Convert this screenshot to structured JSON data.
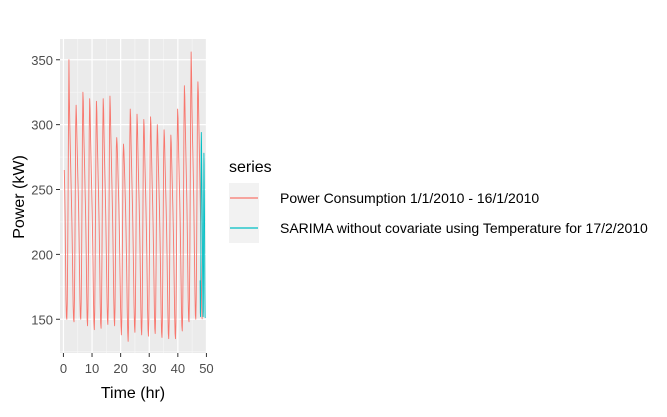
{
  "chart_data": {
    "type": "line",
    "xlabel": "Time (hr)",
    "ylabel": "Power (kW)",
    "xlim": [
      -1.2,
      50.2
    ],
    "ylim": [
      124,
      366
    ],
    "x_ticks": [
      0,
      10,
      20,
      30,
      40,
      50
    ],
    "y_ticks": [
      150,
      200,
      250,
      300,
      350
    ],
    "grid": true,
    "legend": {
      "title": "series",
      "position": "right"
    },
    "series": [
      {
        "name": "Power Consumption 1/1/2010 - 16/1/2010",
        "color": "#F8766D",
        "x_start": 0.3,
        "x_end": 48.5,
        "values": [
          265,
          250,
          228,
          195,
          165,
          152,
          150,
          162,
          198,
          245,
          305,
          350,
          320,
          300,
          285,
          270,
          255,
          240,
          225,
          205,
          182,
          160,
          150,
          148,
          165,
          200,
          248,
          300,
          315,
          305,
          290,
          275,
          260,
          248,
          232,
          212,
          188,
          165,
          152,
          150,
          163,
          198,
          245,
          298,
          325,
          318,
          296,
          282,
          268,
          252,
          238,
          220,
          198,
          170,
          150,
          145,
          158,
          195,
          243,
          295,
          320,
          312,
          292,
          278,
          262,
          248,
          232,
          212,
          190,
          165,
          148,
          142,
          156,
          193,
          240,
          292,
          318,
          310,
          290,
          275,
          260,
          246,
          230,
          210,
          186,
          162,
          147,
          143,
          157,
          194,
          241,
          294,
          320,
          312,
          292,
          276,
          261,
          247,
          231,
          211,
          188,
          164,
          150,
          146,
          160,
          197,
          244,
          296,
          322,
          312,
          293,
          279,
          263,
          249,
          233,
          213,
          190,
          166,
          150,
          145,
          159,
          196,
          240,
          282,
          290,
          285,
          275,
          262,
          250,
          238,
          222,
          203,
          182,
          160,
          145,
          138,
          150,
          186,
          230,
          275,
          285,
          280,
          270,
          258,
          246,
          234,
          218,
          200,
          178,
          155,
          140,
          133,
          145,
          183,
          235,
          290,
          312,
          305,
          285,
          270,
          255,
          241,
          225,
          205,
          183,
          160,
          145,
          140,
          154,
          190,
          236,
          288,
          308,
          300,
          282,
          267,
          253,
          240,
          224,
          205,
          182,
          158,
          143,
          138,
          151,
          188,
          233,
          284,
          304,
          298,
          280,
          266,
          252,
          238,
          222,
          203,
          180,
          157,
          142,
          137,
          150,
          186,
          231,
          283,
          306,
          300,
          281,
          267,
          252,
          239,
          223,
          204,
          182,
          158,
          143,
          139,
          152,
          188,
          233,
          282,
          300,
          292,
          276,
          263,
          249,
          236,
          220,
          201,
          178,
          155,
          140,
          136,
          149,
          185,
          230,
          278,
          296,
          290,
          274,
          261,
          247,
          234,
          218,
          199,
          177,
          154,
          139,
          135,
          148,
          184,
          229,
          276,
          292,
          286,
          272,
          259,
          246,
          233,
          217,
          198,
          176,
          154,
          139,
          135,
          148,
          184,
          232,
          286,
          312,
          305,
          285,
          270,
          256,
          242,
          226,
          206,
          183,
          160,
          145,
          141,
          155,
          192,
          240,
          300,
          330,
          322,
          302,
          286,
          270,
          255,
          238,
          216,
          190,
          165,
          150,
          148,
          165,
          205,
          262,
          320,
          356,
          340,
          312,
          293,
          278,
          262,
          245,
          222,
          195,
          170,
          153,
          150,
          166,
          205,
          258,
          318,
          333,
          325,
          305,
          288,
          270,
          252,
          232,
          208,
          182,
          160,
          150
        ]
      },
      {
        "name": "SARIMA without covariate using Temperature for 17/2/2010",
        "color": "#00BFC4",
        "x_start": 47.8,
        "x_end": 49.6,
        "values": [
          180,
          155,
          152,
          170,
          220,
          280,
          294,
          285,
          270,
          255,
          240,
          222,
          200,
          178,
          160,
          152,
          156,
          190,
          245,
          278,
          270,
          250,
          230,
          200,
          170,
          152,
          151
        ]
      }
    ]
  }
}
